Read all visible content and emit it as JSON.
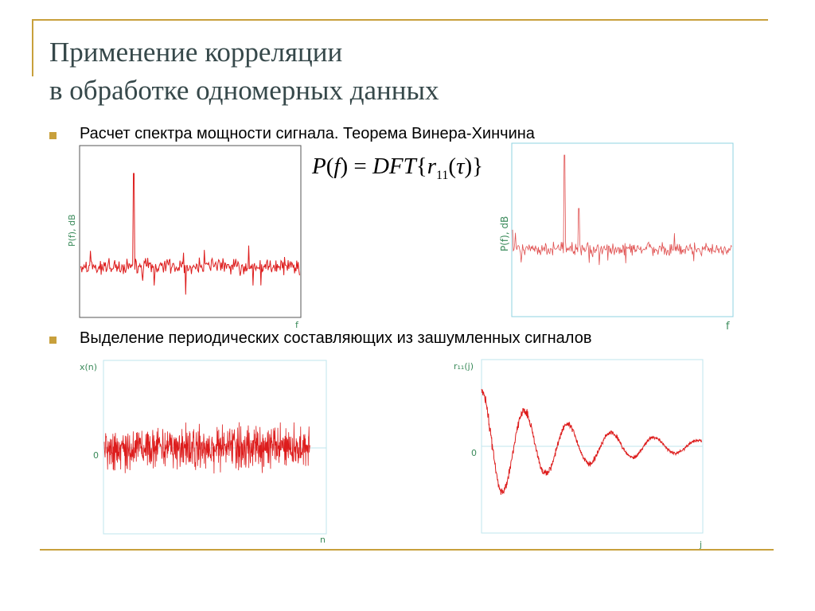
{
  "title": {
    "line1": "Применение корреляции",
    "line2": "в обработке одномерных данных"
  },
  "bullets": [
    {
      "text": "Расчет спектра мощности сигнала. Теорема Винера-Хинчина"
    },
    {
      "text": "Выделение периодических составляющих из зашумленных сигналов"
    }
  ],
  "formula": {
    "lhs": "P",
    "arg": "f",
    "op": "DFT",
    "sym": "r",
    "sub": "11",
    "tau": "τ"
  },
  "colors": {
    "accent": "#c8a03c",
    "signal": "#dd1c1c",
    "axis_label": "#3a8a5a"
  },
  "chart_data": [
    {
      "type": "line",
      "ylabel": "P(f), dB",
      "xlabel": "f",
      "description_peaks": 1
    },
    {
      "type": "line",
      "ylabel": "P(f), dB",
      "xlabel": "f",
      "description_peaks": 2
    },
    {
      "type": "line",
      "ylabel": "x(n)",
      "xlabel": "n",
      "zero_tick": "0"
    },
    {
      "type": "line",
      "ylabel": "r₁₁(j)",
      "xlabel": "j",
      "zero_tick": "0"
    }
  ]
}
